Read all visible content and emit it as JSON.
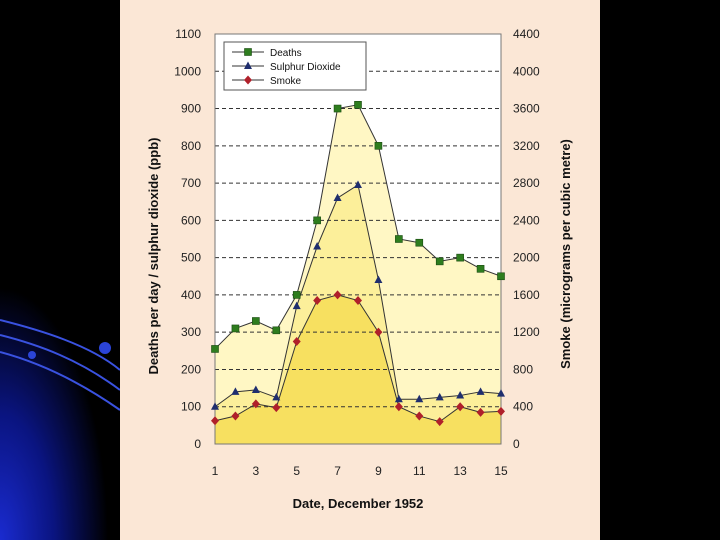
{
  "slide": {
    "background": "#000000",
    "panel_color": "#fbe7d6"
  },
  "chart_data": {
    "type": "line",
    "title": "",
    "xlabel": "Date, December 1952",
    "ylabel_left": "Deaths per day / sulphur dioxide (ppb)",
    "ylabel_right": "Smoke (micrograms per cubic metre)",
    "x": [
      1,
      2,
      3,
      4,
      5,
      6,
      7,
      8,
      9,
      10,
      11,
      12,
      13,
      14,
      15
    ],
    "x_ticks": [
      "1",
      "3",
      "5",
      "7",
      "9",
      "11",
      "13",
      "15"
    ],
    "x_tick_values": [
      1,
      3,
      5,
      7,
      9,
      11,
      13,
      15
    ],
    "ylim_left": [
      0,
      1100
    ],
    "ylim_right": [
      0,
      4400
    ],
    "y_ticks_left": [
      "0",
      "100",
      "200",
      "300",
      "400",
      "500",
      "600",
      "700",
      "800",
      "900",
      "1000",
      "1100"
    ],
    "y_tick_values_left": [
      0,
      100,
      200,
      300,
      400,
      500,
      600,
      700,
      800,
      900,
      1000,
      1100
    ],
    "y_ticks_right": [
      "0",
      "400",
      "800",
      "1200",
      "1600",
      "2000",
      "2400",
      "2800",
      "3200",
      "3600",
      "4000",
      "4400"
    ],
    "grid": "horizontal dashed",
    "legend_position": "top-left",
    "series": [
      {
        "name": "Deaths",
        "axis": "left",
        "color": "#2e7d1e",
        "marker": "square",
        "values": [
          255,
          310,
          330,
          305,
          400,
          600,
          900,
          910,
          800,
          550,
          540,
          490,
          500,
          470,
          450
        ]
      },
      {
        "name": "Sulphur Dioxide",
        "axis": "left",
        "color": "#1f2e6e",
        "marker": "triangle",
        "values": [
          100,
          140,
          145,
          125,
          370,
          530,
          660,
          695,
          440,
          120,
          120,
          125,
          130,
          140,
          135
        ]
      },
      {
        "name": "Smoke",
        "axis": "right",
        "color": "#b0202a",
        "marker": "diamond",
        "values": [
          250,
          300,
          430,
          390,
          1100,
          1540,
          1600,
          1540,
          1200,
          400,
          300,
          240,
          400,
          340,
          350
        ]
      }
    ]
  }
}
